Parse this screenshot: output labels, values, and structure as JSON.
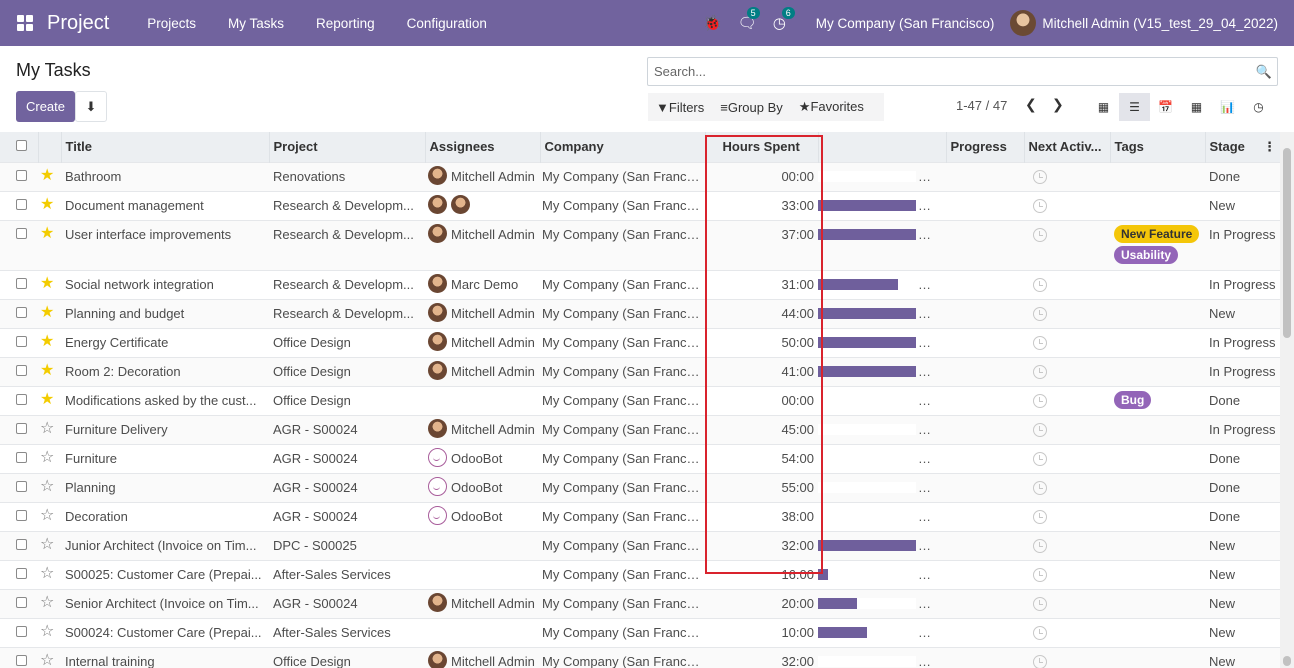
{
  "navbar": {
    "brand": "Project",
    "menus": [
      "Projects",
      "My Tasks",
      "Reporting",
      "Configuration"
    ],
    "chat_badge": "5",
    "activity_badge": "6",
    "company": "My Company (San Francisco)",
    "user": "Mitchell Admin (V15_test_29_04_2022)"
  },
  "control": {
    "title": "My Tasks",
    "create_label": "Create",
    "search_placeholder": "Search...",
    "filters_label": "Filters",
    "groupby_label": "Group By",
    "favorites_label": "Favorites",
    "pager": "1-47 / 47"
  },
  "columns": [
    "Title",
    "Project",
    "Assignees",
    "Company",
    "Hours Spent",
    "Progress",
    "Next Activ...",
    "Tags",
    "Stage"
  ],
  "rows": [
    {
      "star": true,
      "title": "Bathroom",
      "project": "Renovations",
      "assignees": [
        "Mitchell Admin"
      ],
      "company": "My Company (San Francis...",
      "hours": "00:00",
      "progress": 0,
      "tags": [],
      "stage": "Done"
    },
    {
      "star": true,
      "title": "Document management",
      "project": "Research & Developm...",
      "assignees": [
        "",
        ""
      ],
      "company": "My Company (San Francis...",
      "hours": "33:00",
      "progress": 100,
      "tags": [],
      "stage": "New"
    },
    {
      "star": true,
      "title": "User interface improvements",
      "project": "Research & Developm...",
      "assignees": [
        "Mitchell Admin"
      ],
      "company": "My Company (San Francis...",
      "hours": "37:00",
      "progress": 100,
      "tags": [
        {
          "label": "New Feature",
          "color": "#f4c609"
        },
        {
          "label": "Usability",
          "color": "#9365b8"
        }
      ],
      "stage": "In Progress"
    },
    {
      "star": true,
      "title": "Social network integration",
      "project": "Research & Developm...",
      "assignees": [
        "Marc Demo"
      ],
      "company": "My Company (San Francis...",
      "hours": "31:00",
      "progress": 82,
      "tags": [],
      "stage": "In Progress"
    },
    {
      "star": true,
      "title": "Planning and budget",
      "project": "Research & Developm...",
      "assignees": [
        "Mitchell Admin"
      ],
      "company": "My Company (San Francis...",
      "hours": "44:00",
      "progress": 100,
      "tags": [],
      "stage": "New"
    },
    {
      "star": true,
      "title": "Energy Certificate",
      "project": "Office Design",
      "assignees": [
        "Mitchell Admin"
      ],
      "company": "My Company (San Francis...",
      "hours": "50:00",
      "progress": 100,
      "tags": [],
      "stage": "In Progress"
    },
    {
      "star": true,
      "title": "Room 2: Decoration",
      "project": "Office Design",
      "assignees": [
        "Mitchell Admin"
      ],
      "company": "My Company (San Francis...",
      "hours": "41:00",
      "progress": 100,
      "tags": [],
      "stage": "In Progress"
    },
    {
      "star": true,
      "title": "Modifications asked by the cust...",
      "project": "Office Design",
      "assignees": [],
      "company": "My Company (San Francis...",
      "hours": "00:00",
      "progress": 0,
      "tags": [
        {
          "label": "Bug",
          "color": "#9365b8"
        }
      ],
      "stage": "Done"
    },
    {
      "star": false,
      "title": "Furniture Delivery",
      "project": "AGR - S00024",
      "assignees": [
        "Mitchell Admin"
      ],
      "company": "My Company (San Francis...",
      "hours": "45:00",
      "progress": 0,
      "tags": [],
      "stage": "In Progress"
    },
    {
      "star": false,
      "title": "Furniture",
      "project": "AGR - S00024",
      "assignees": [
        "OdooBot"
      ],
      "company": "My Company (San Francis...",
      "hours": "54:00",
      "progress": 0,
      "tags": [],
      "stage": "Done"
    },
    {
      "star": false,
      "title": "Planning",
      "project": "AGR - S00024",
      "assignees": [
        "OdooBot"
      ],
      "company": "My Company (San Francis...",
      "hours": "55:00",
      "progress": 0,
      "tags": [],
      "stage": "Done"
    },
    {
      "star": false,
      "title": "Decoration",
      "project": "AGR - S00024",
      "assignees": [
        "OdooBot"
      ],
      "company": "My Company (San Francis...",
      "hours": "38:00",
      "progress": 0,
      "tags": [],
      "stage": "Done"
    },
    {
      "star": false,
      "title": "Junior Architect (Invoice on Tim...",
      "project": "DPC - S00025",
      "assignees": [],
      "company": "My Company (San Francis...",
      "hours": "32:00",
      "progress": 100,
      "tags": [],
      "stage": "New"
    },
    {
      "star": false,
      "title": "S00025: Customer Care (Prepai...",
      "project": "After-Sales Services",
      "assignees": [],
      "company": "My Company (San Francis...",
      "hours": "16:00",
      "progress": 10,
      "tags": [],
      "stage": "New"
    },
    {
      "star": false,
      "title": "Senior Architect (Invoice on Tim...",
      "project": "AGR - S00024",
      "assignees": [
        "Mitchell Admin"
      ],
      "company": "My Company (San Francis...",
      "hours": "20:00",
      "progress": 40,
      "tags": [],
      "stage": "New"
    },
    {
      "star": false,
      "title": "S00024: Customer Care (Prepai...",
      "project": "After-Sales Services",
      "assignees": [],
      "company": "My Company (San Francis...",
      "hours": "10:00",
      "progress": 50,
      "tags": [],
      "stage": "New"
    },
    {
      "star": false,
      "title": "Internal training",
      "project": "Office Design",
      "assignees": [
        "Mitchell Admin"
      ],
      "company": "My Company (San Francis...",
      "hours": "32:00",
      "progress": 0,
      "tags": [],
      "stage": "New"
    }
  ]
}
